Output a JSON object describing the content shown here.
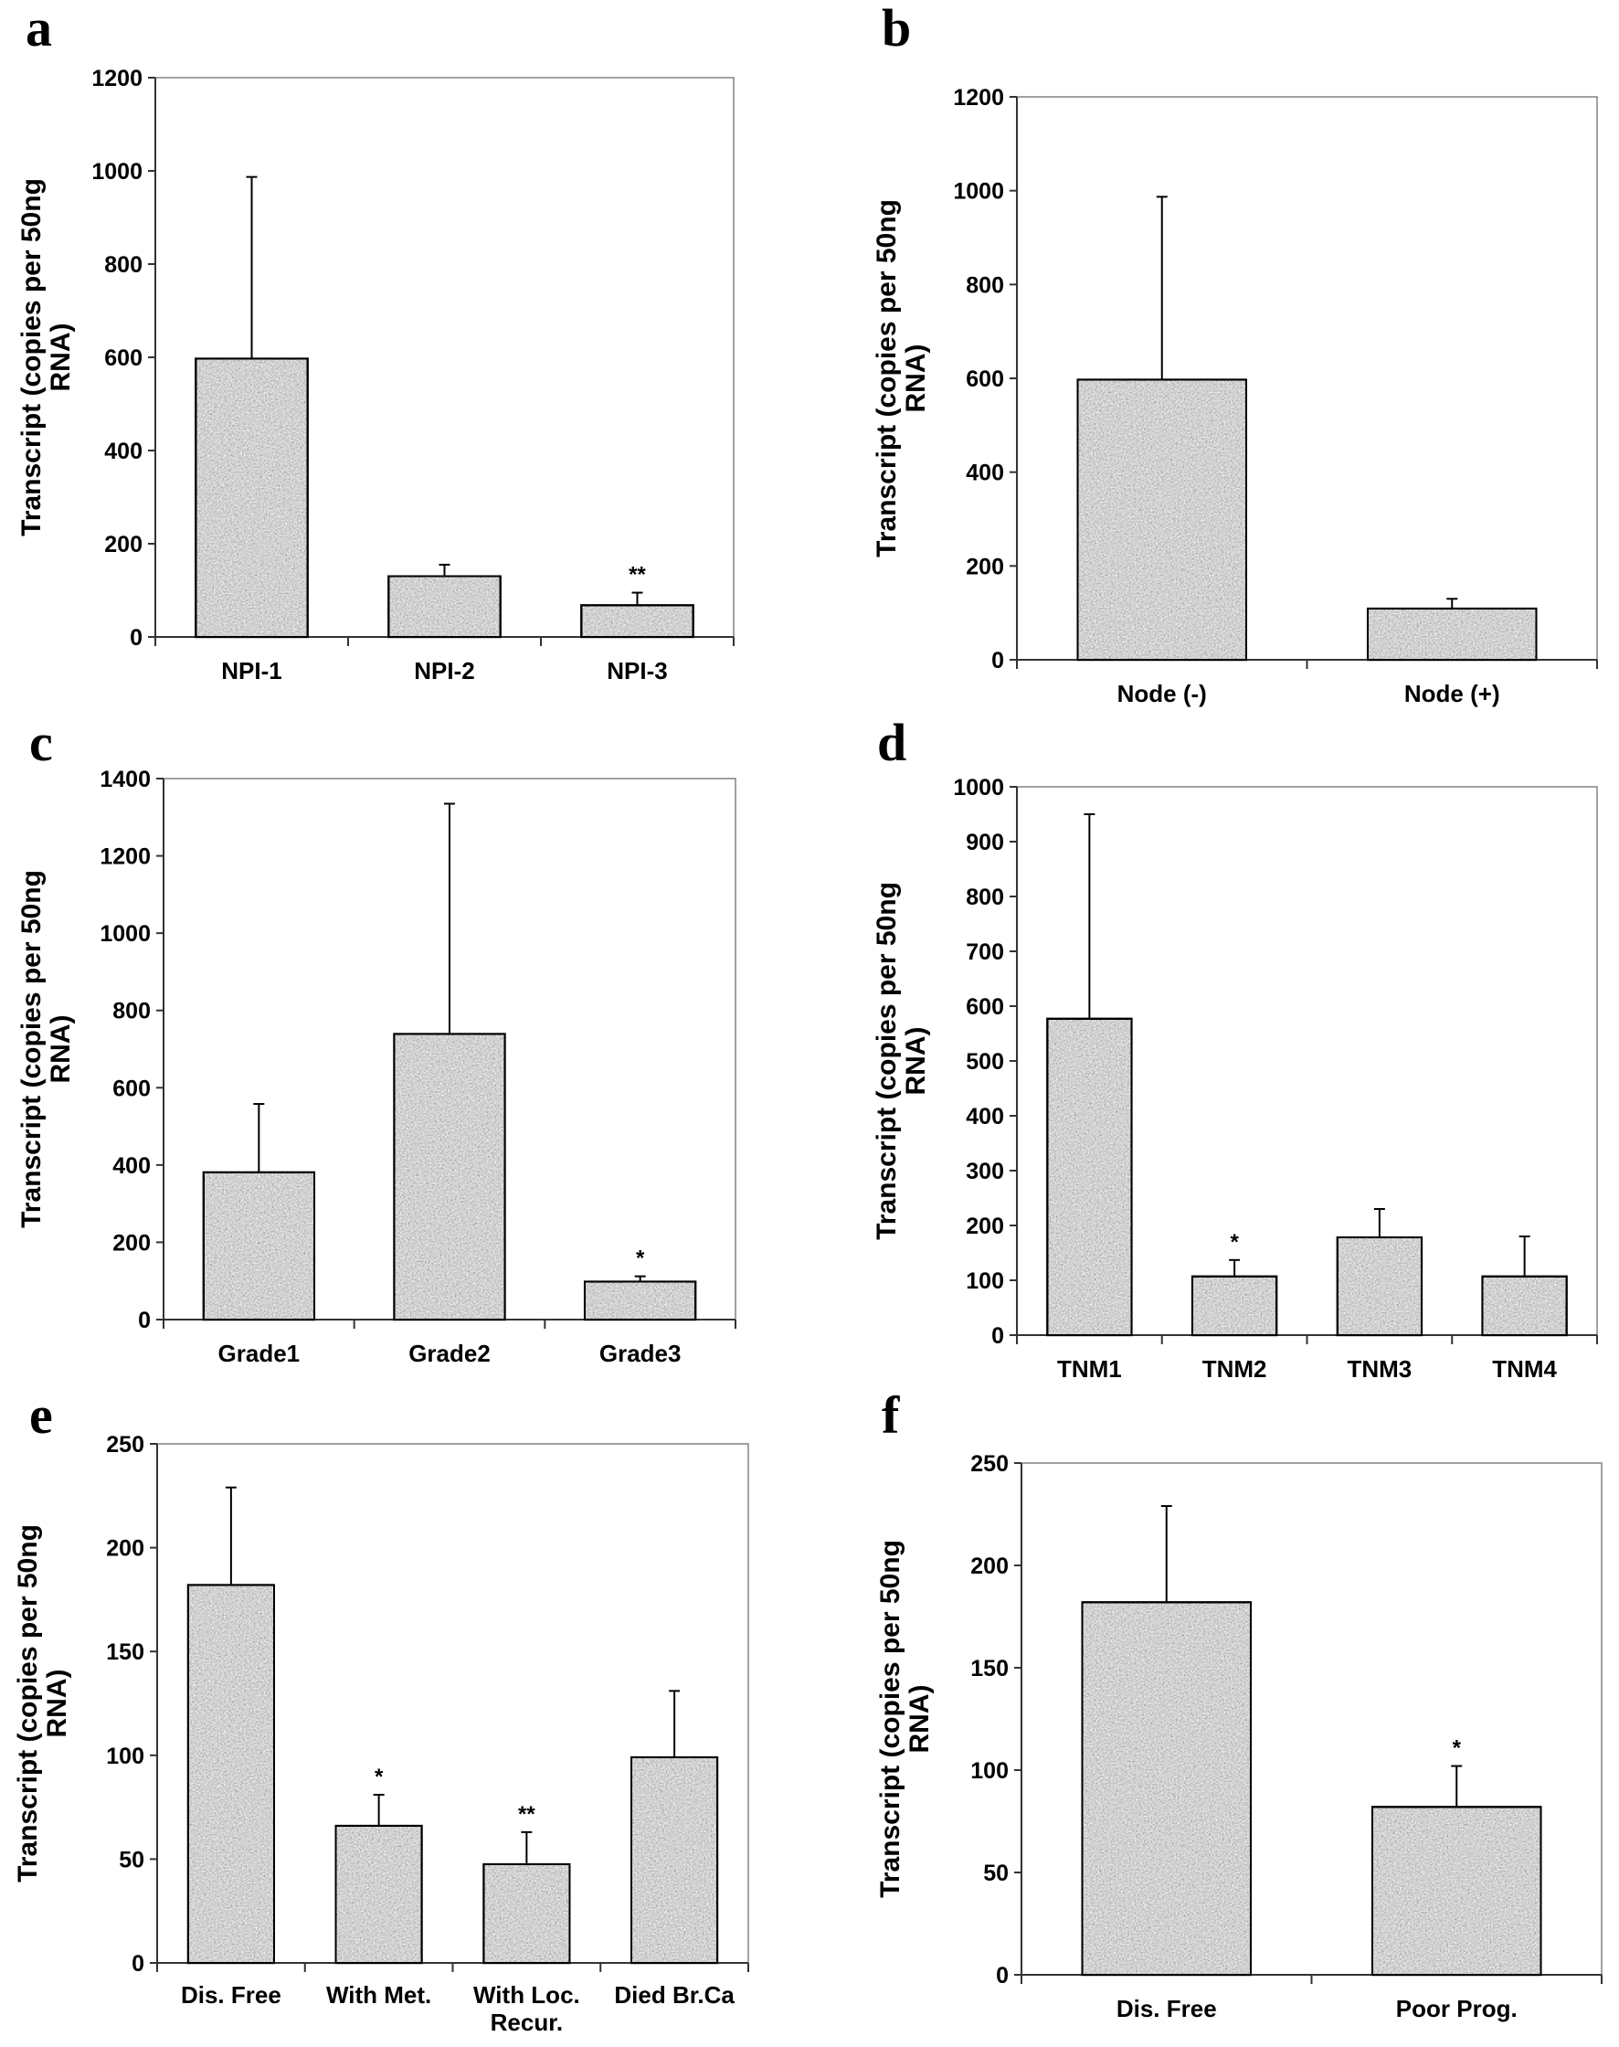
{
  "figure": {
    "bar_fill_color": "#a9a9a9",
    "bar_texture": "speckled-gray",
    "bar_edge_color": "#000000"
  },
  "chart_data": [
    {
      "panel": "a",
      "type": "bar",
      "title": "",
      "xlabel": "",
      "ylabel": "Transcript (copies per 50ng RNA)",
      "ylabel_lines": [
        "Transcript (copies per 50ng",
        "RNA)"
      ],
      "categories": [
        "NPI-1",
        "NPI-2",
        "NPI-3"
      ],
      "values": [
        597,
        130,
        68
      ],
      "error_upper": [
        987,
        155,
        95
      ],
      "significance": [
        "",
        "",
        "**"
      ],
      "ylim": [
        0,
        1200
      ],
      "yticks": [
        0,
        200,
        400,
        600,
        800,
        1000,
        1200
      ],
      "grid": false,
      "legend": "none"
    },
    {
      "panel": "b",
      "type": "bar",
      "title": "",
      "xlabel": "",
      "ylabel": "Transcript (copies per 50ng RNA)",
      "ylabel_lines": [
        "Transcript (copies per 50ng",
        "RNA)"
      ],
      "categories": [
        "Node (-)",
        "Node (+)"
      ],
      "values": [
        597,
        109
      ],
      "error_upper": [
        987,
        130
      ],
      "significance": [
        "",
        ""
      ],
      "ylim": [
        0,
        1200
      ],
      "yticks": [
        0,
        200,
        400,
        600,
        800,
        1000,
        1200
      ],
      "grid": false,
      "legend": "none"
    },
    {
      "panel": "c",
      "type": "bar",
      "title": "",
      "xlabel": "",
      "ylabel": "Transcript (copies per 50ng RNA)",
      "ylabel_lines": [
        "Transcript (copies per 50ng",
        "RNA)"
      ],
      "categories": [
        "Grade1",
        "Grade2",
        "Grade3"
      ],
      "values": [
        381,
        739,
        98
      ],
      "error_upper": [
        558,
        1335,
        112
      ],
      "significance": [
        "",
        "",
        "*"
      ],
      "ylim": [
        0,
        1400
      ],
      "yticks": [
        0,
        200,
        400,
        600,
        800,
        1000,
        1200,
        1400
      ],
      "grid": false,
      "legend": "none"
    },
    {
      "panel": "d",
      "type": "bar",
      "title": "",
      "xlabel": "",
      "ylabel": "Transcript (copies per 50ng RNA)",
      "ylabel_lines": [
        "Transcript (copies per 50ng",
        "RNA)"
      ],
      "categories": [
        "TNM1",
        "TNM2",
        "TNM3",
        "TNM4"
      ],
      "values": [
        577,
        107,
        178,
        107
      ],
      "error_upper": [
        950,
        137,
        230,
        180
      ],
      "significance": [
        "",
        "*",
        "",
        ""
      ],
      "ylim": [
        0,
        1000
      ],
      "yticks": [
        0,
        100,
        200,
        300,
        400,
        500,
        600,
        700,
        800,
        900,
        1000
      ],
      "grid": false,
      "legend": "none"
    },
    {
      "panel": "e",
      "type": "bar",
      "title": "",
      "xlabel": "",
      "ylabel": "Transcript (copies per 50ng RNA)",
      "ylabel_lines": [
        "Transcript (copies per 50ng",
        "RNA)"
      ],
      "categories": [
        "Dis. Free",
        "With Met.",
        "With Loc. Recur.",
        "Died Br.Ca"
      ],
      "category_lines": [
        [
          "Dis. Free"
        ],
        [
          "With Met."
        ],
        [
          "With Loc.",
          "Recur."
        ],
        [
          "Died Br.Ca"
        ]
      ],
      "values": [
        182,
        66,
        47.5,
        99
      ],
      "error_upper": [
        229,
        81,
        63,
        131
      ],
      "significance": [
        "",
        "*",
        "**",
        ""
      ],
      "ylim": [
        0,
        250
      ],
      "yticks": [
        0,
        50,
        100,
        150,
        200,
        250
      ],
      "grid": false,
      "legend": "none"
    },
    {
      "panel": "f",
      "type": "bar",
      "title": "",
      "xlabel": "",
      "ylabel": "Transcript (copies per 50ng RNA)",
      "ylabel_lines": [
        "Transcript (copies per 50ng",
        "RNA)"
      ],
      "categories": [
        "Dis. Free",
        "Poor Prog."
      ],
      "values": [
        182,
        82
      ],
      "error_upper": [
        229,
        102
      ],
      "significance": [
        "",
        "*"
      ],
      "ylim": [
        0,
        250
      ],
      "yticks": [
        0,
        50,
        100,
        150,
        200,
        250
      ],
      "grid": false,
      "legend": "none"
    }
  ]
}
